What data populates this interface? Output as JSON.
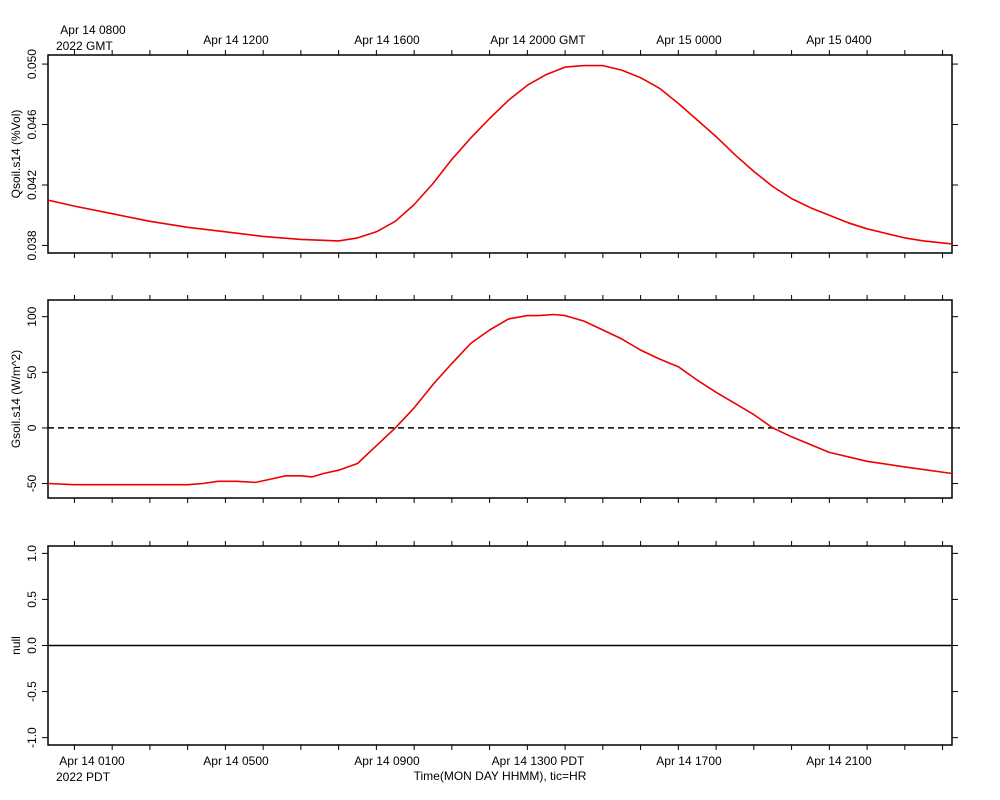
{
  "chart_data": [
    {
      "type": "line",
      "ylabel": "Qsoil.s14 (%Vol)",
      "top_axis": {
        "first_label_line1": "Apr 14 0800",
        "first_label_line2": "2022 GMT",
        "tick_labels": [
          "Apr 14 1200",
          "Apr 14 1600",
          "Apr 14 2000 GMT",
          "Apr 15 0000",
          "Apr 15 0400"
        ]
      },
      "xlim_hours_pdt": [
        0.3,
        24.25
      ],
      "ylim": [
        0.0375,
        0.0506
      ],
      "yticks": [
        "0.038",
        "0.042",
        "0.046",
        "0.050"
      ],
      "ytick_values": [
        0.038,
        0.042,
        0.046,
        0.05
      ],
      "series": [
        {
          "color": "#ee0000",
          "x": [
            0.3,
            1.0,
            2.0,
            3.0,
            4.0,
            5.0,
            6.0,
            7.0,
            8.0,
            8.5,
            9.0,
            9.5,
            10.0,
            10.5,
            11.0,
            11.5,
            12.0,
            12.5,
            13.0,
            13.5,
            14.0,
            14.5,
            15.0,
            15.5,
            16.0,
            16.5,
            17.0,
            17.5,
            18.0,
            18.5,
            19.0,
            19.5,
            20.0,
            20.5,
            21.0,
            21.5,
            22.0,
            22.5,
            23.0,
            23.5,
            24.25
          ],
          "y": [
            0.041,
            0.0406,
            0.0401,
            0.0396,
            0.0392,
            0.0389,
            0.0386,
            0.0384,
            0.0383,
            0.0385,
            0.0389,
            0.0396,
            0.0407,
            0.0421,
            0.0437,
            0.0451,
            0.0464,
            0.0476,
            0.0486,
            0.0493,
            0.0498,
            0.0499,
            0.0499,
            0.0496,
            0.0491,
            0.0484,
            0.0474,
            0.0463,
            0.0452,
            0.044,
            0.0429,
            0.0419,
            0.0411,
            0.0405,
            0.04,
            0.0395,
            0.0391,
            0.0388,
            0.0385,
            0.0383,
            0.0381
          ]
        }
      ]
    },
    {
      "type": "line",
      "ylabel": "Gsoil.s14 (W/m^2)",
      "xlim_hours_pdt": [
        0.3,
        24.25
      ],
      "ylim": [
        -63,
        115
      ],
      "yticks": [
        "-50",
        "0",
        "50",
        "100"
      ],
      "ytick_values": [
        -50,
        0,
        50,
        100
      ],
      "zero_line": "dashed",
      "series": [
        {
          "color": "#ee0000",
          "x": [
            0.3,
            1.0,
            2.0,
            3.0,
            4.0,
            4.4,
            4.8,
            5.3,
            5.8,
            6.2,
            6.6,
            7.0,
            7.3,
            7.6,
            8.0,
            8.5,
            9.0,
            9.5,
            10.0,
            10.5,
            11.0,
            11.5,
            12.0,
            12.5,
            13.0,
            13.3,
            13.7,
            14.0,
            14.5,
            15.0,
            15.5,
            16.0,
            16.5,
            17.0,
            17.5,
            18.0,
            18.5,
            19.0,
            19.5,
            20.0,
            21.0,
            22.0,
            23.0,
            24.25
          ],
          "y": [
            -50,
            -51,
            -51,
            -51,
            -51,
            -50,
            -48,
            -48,
            -49,
            -46,
            -43,
            -43,
            -44,
            -41,
            -38,
            -32,
            -16,
            0,
            18,
            39,
            58,
            76,
            88,
            98,
            101,
            101,
            102,
            101,
            96,
            88,
            80,
            70,
            62,
            55,
            43,
            32,
            22,
            12,
            0,
            -8,
            -22,
            -30,
            -35,
            -41
          ]
        }
      ]
    },
    {
      "type": "line",
      "ylabel": "null",
      "xlim_hours_pdt": [
        0.3,
        24.25
      ],
      "ylim": [
        -1.08,
        1.08
      ],
      "yticks": [
        "-1.0",
        "-0.5",
        "0.0",
        "0.5",
        "1.0"
      ],
      "ytick_values": [
        -1.0,
        -0.5,
        0.0,
        0.5,
        1.0
      ],
      "series": [
        {
          "color": "#000000",
          "x": [
            0.3,
            24.25
          ],
          "y": [
            0,
            0
          ]
        }
      ]
    }
  ],
  "bottom_axis": {
    "first_label_line1": "Apr 14 0100",
    "first_label_line2": "2022 PDT",
    "tick_labels": [
      "Apr 14 0500",
      "Apr 14 0900",
      "Apr 14 1300 PDT",
      "Apr 14 1700",
      "Apr 14 2100"
    ],
    "tick_label_hours_pdt": [
      1,
      5,
      9,
      13,
      17,
      21
    ],
    "title": "Time(MON DAY HHMM), tic=HR"
  }
}
